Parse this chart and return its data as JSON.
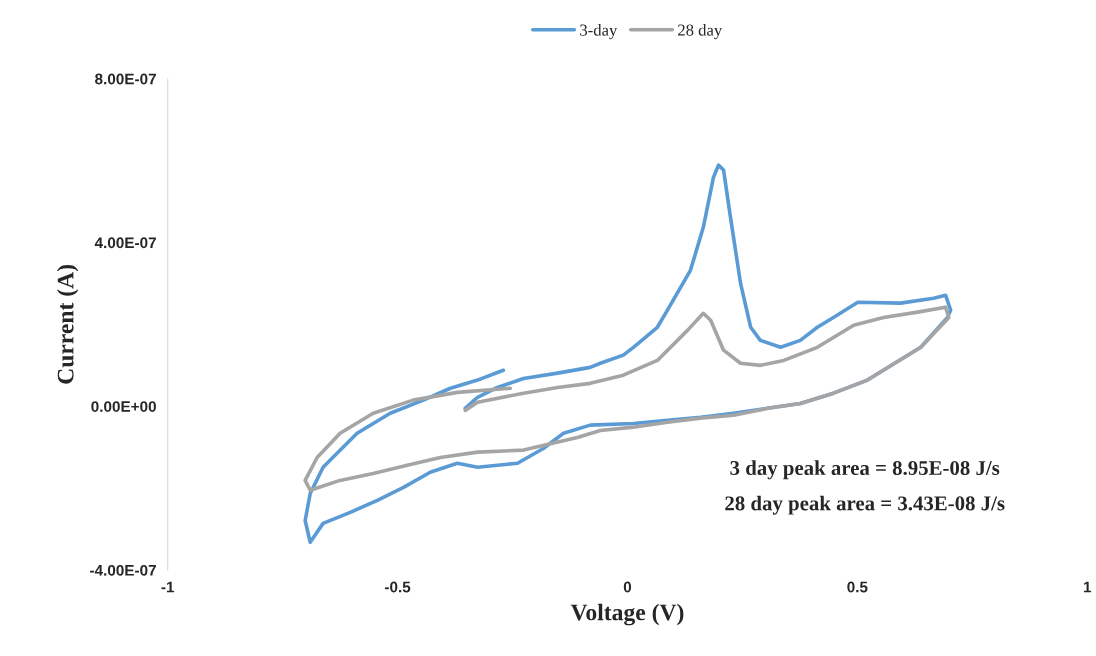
{
  "chart_data": {
    "type": "line",
    "xlabel": "Voltage (V)",
    "ylabel": "Current (A)",
    "xlim": [
      -1,
      1
    ],
    "xticks": [
      -1,
      -0.5,
      0,
      0.5,
      1
    ],
    "ylim": [
      -4e-07,
      8e-07
    ],
    "yticks": [
      {
        "value": -4e-07,
        "label": "-4.00E-07"
      },
      {
        "value": 0,
        "label": "0.00E+00"
      },
      {
        "value": 4e-07,
        "label": "4.00E-07"
      },
      {
        "value": 8e-07,
        "label": "8.00E-07"
      }
    ],
    "grid": false,
    "legend": "top",
    "marker": "none",
    "line_style": "solid",
    "annotations": [
      "3 day peak area = 8.95E-08 J/s",
      "28 day peak area = 3.43E-08 J/s"
    ],
    "series": [
      {
        "name": "3-day",
        "color": "#5b9bd5",
        "x": [
          -0.353,
          -0.326,
          -0.283,
          -0.226,
          -0.152,
          -0.081,
          -0.059,
          -0.009,
          0.013,
          0.065,
          0.087,
          0.137,
          0.165,
          0.187,
          0.198,
          0.209,
          0.224,
          0.246,
          0.268,
          0.289,
          0.333,
          0.376,
          0.413,
          0.448,
          0.501,
          0.594,
          0.666,
          0.692,
          0.703,
          0.696,
          0.638,
          0.522,
          0.448,
          0.376,
          0.305,
          0.231,
          0.159,
          0.087,
          0.013,
          -0.081,
          -0.139,
          -0.183,
          -0.239,
          -0.326,
          -0.37,
          -0.429,
          -0.487,
          -0.544,
          -0.603,
          -0.662,
          -0.69,
          -0.701,
          -0.69,
          -0.662,
          -0.588,
          -0.516,
          -0.444,
          -0.385,
          -0.326,
          -0.27
        ],
        "values": [
          -5e-09,
          2.2e-08,
          4.6e-08,
          6.8e-08,
          8.1e-08,
          9.5e-08,
          1.05e-07,
          1.25e-07,
          1.44e-07,
          1.93e-07,
          2.35e-07,
          3.32e-07,
          4.37e-07,
          5.59e-07,
          5.89e-07,
          5.77e-07,
          4.62e-07,
          3e-07,
          1.93e-07,
          1.61e-07,
          1.44e-07,
          1.61e-07,
          1.93e-07,
          2.17e-07,
          2.54e-07,
          2.52e-07,
          2.64e-07,
          2.71e-07,
          2.35e-07,
          2.17e-07,
          1.44e-07,
          6.4e-08,
          3.2e-08,
          7e-09,
          -5e-09,
          -1.7e-08,
          -2.7e-08,
          -3.4e-08,
          -4.2e-08,
          -4.6e-08,
          -6.6e-08,
          -1.03e-07,
          -1.39e-07,
          -1.49e-07,
          -1.39e-07,
          -1.61e-07,
          -1.98e-07,
          -2.3e-07,
          -2.59e-07,
          -2.86e-07,
          -3.32e-07,
          -2.79e-07,
          -2.13e-07,
          -1.49e-07,
          -6.6e-08,
          -1.7e-08,
          1.5e-08,
          4.4e-08,
          6.4e-08,
          8.8e-08
        ]
      },
      {
        "name": "28 day",
        "color": "#a5a5a5",
        "x": [
          -0.353,
          -0.326,
          -0.226,
          -0.152,
          -0.081,
          -0.009,
          0.065,
          0.131,
          0.165,
          0.181,
          0.209,
          0.246,
          0.289,
          0.34,
          0.413,
          0.492,
          0.557,
          0.631,
          0.692,
          0.699,
          0.638,
          0.522,
          0.448,
          0.376,
          0.305,
          0.231,
          0.159,
          0.087,
          0.013,
          -0.059,
          -0.109,
          -0.226,
          -0.326,
          -0.407,
          -0.479,
          -0.553,
          -0.625,
          -0.69,
          -0.701,
          -0.675,
          -0.625,
          -0.553,
          -0.466,
          -0.37,
          -0.255
        ],
        "values": [
          -1e-08,
          1e-08,
          3.2e-08,
          4.6e-08,
          5.6e-08,
          7.6e-08,
          1.12e-07,
          1.86e-07,
          2.27e-07,
          2.1e-07,
          1.37e-07,
          1.05e-07,
          1e-07,
          1.12e-07,
          1.44e-07,
          1.98e-07,
          2.17e-07,
          2.3e-07,
          2.42e-07,
          2.17e-07,
          1.44e-07,
          6.4e-08,
          3.2e-08,
          7e-09,
          -5e-09,
          -2.2e-08,
          -2.9e-08,
          -3.9e-08,
          -5.1e-08,
          -5.9e-08,
          -7.6e-08,
          -1.07e-07,
          -1.12e-07,
          -1.25e-07,
          -1.44e-07,
          -1.64e-07,
          -1.81e-07,
          -2.05e-07,
          -1.81e-07,
          -1.25e-07,
          -6.6e-08,
          -1.7e-08,
          1.5e-08,
          3.4e-08,
          4.4e-08
        ]
      }
    ]
  }
}
